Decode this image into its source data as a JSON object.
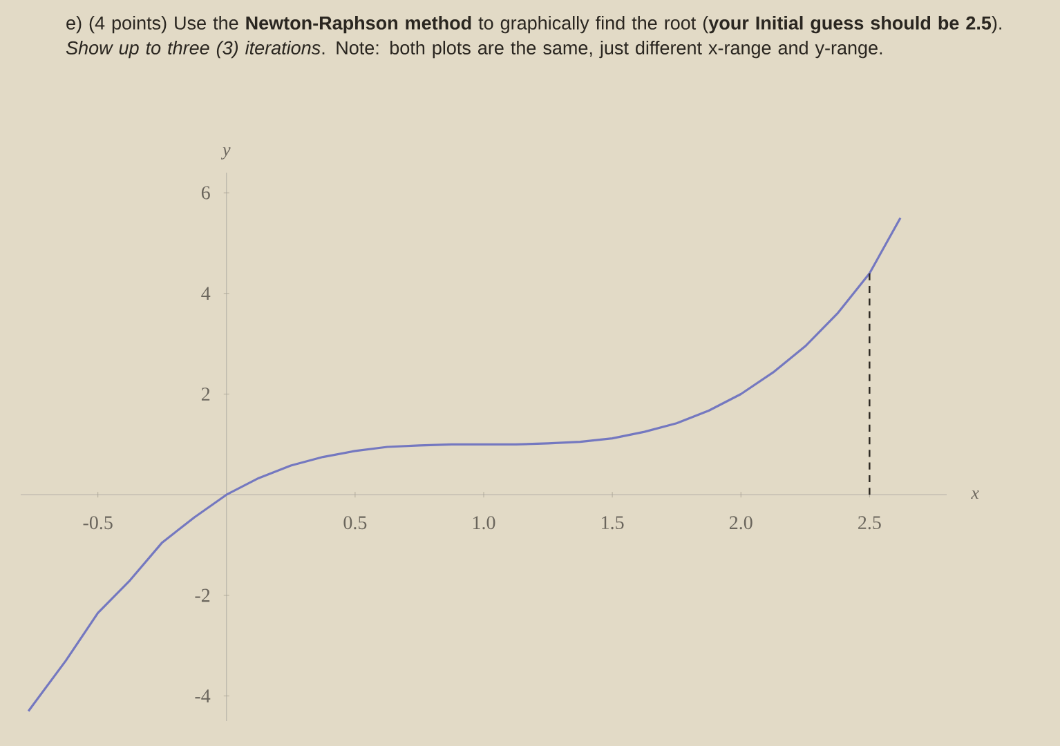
{
  "chart_data": {
    "type": "line",
    "title": "e) (4 points) Use the **Newton-Raphson method** to graphically find the root (**your Initial guess should be 2.5**). *Show up to three (3) iterations*. Note: both plots are the same, just different x-range and y-range.",
    "xlabel": "x",
    "ylabel": "y",
    "xlim": [
      -0.8,
      2.8
    ],
    "ylim": [
      -4.5,
      6.4
    ],
    "xticks": [
      -0.5,
      0.5,
      {
        "value": 1,
        "label": "1.0"
      },
      1.5,
      {
        "value": 2,
        "label": "2.0"
      },
      2.5
    ],
    "yticks": [
      -4,
      -2,
      2,
      4,
      6
    ],
    "series": [
      {
        "type": "line",
        "color": "#7478c0",
        "line_style": "solid",
        "x": [
          -0.77,
          -0.625,
          -0.5,
          -0.375,
          -0.25,
          -0.125,
          0,
          0.125,
          0.25,
          0.375,
          0.5,
          0.625,
          0.75,
          0.875,
          1,
          1.125,
          1.25,
          1.375,
          1.5,
          1.625,
          1.75,
          1.875,
          2,
          2.125,
          2.25,
          2.375,
          2.5,
          2.62
        ],
        "values": [
          -4.3,
          -3.3,
          -2.35,
          -1.7,
          -0.95,
          -0.45,
          0,
          0.33,
          0.58,
          0.75,
          0.87,
          0.95,
          0.98,
          1.0,
          1.0,
          1.0,
          1.02,
          1.05,
          1.12,
          1.25,
          1.42,
          1.67,
          2.0,
          2.43,
          2.95,
          3.6,
          4.4,
          5.5
        ]
      },
      {
        "type": "line",
        "color": "#2a2620",
        "line_style": "dashed",
        "x": [
          2.5,
          2.5
        ],
        "values": [
          0,
          4.4
        ]
      }
    ]
  }
}
